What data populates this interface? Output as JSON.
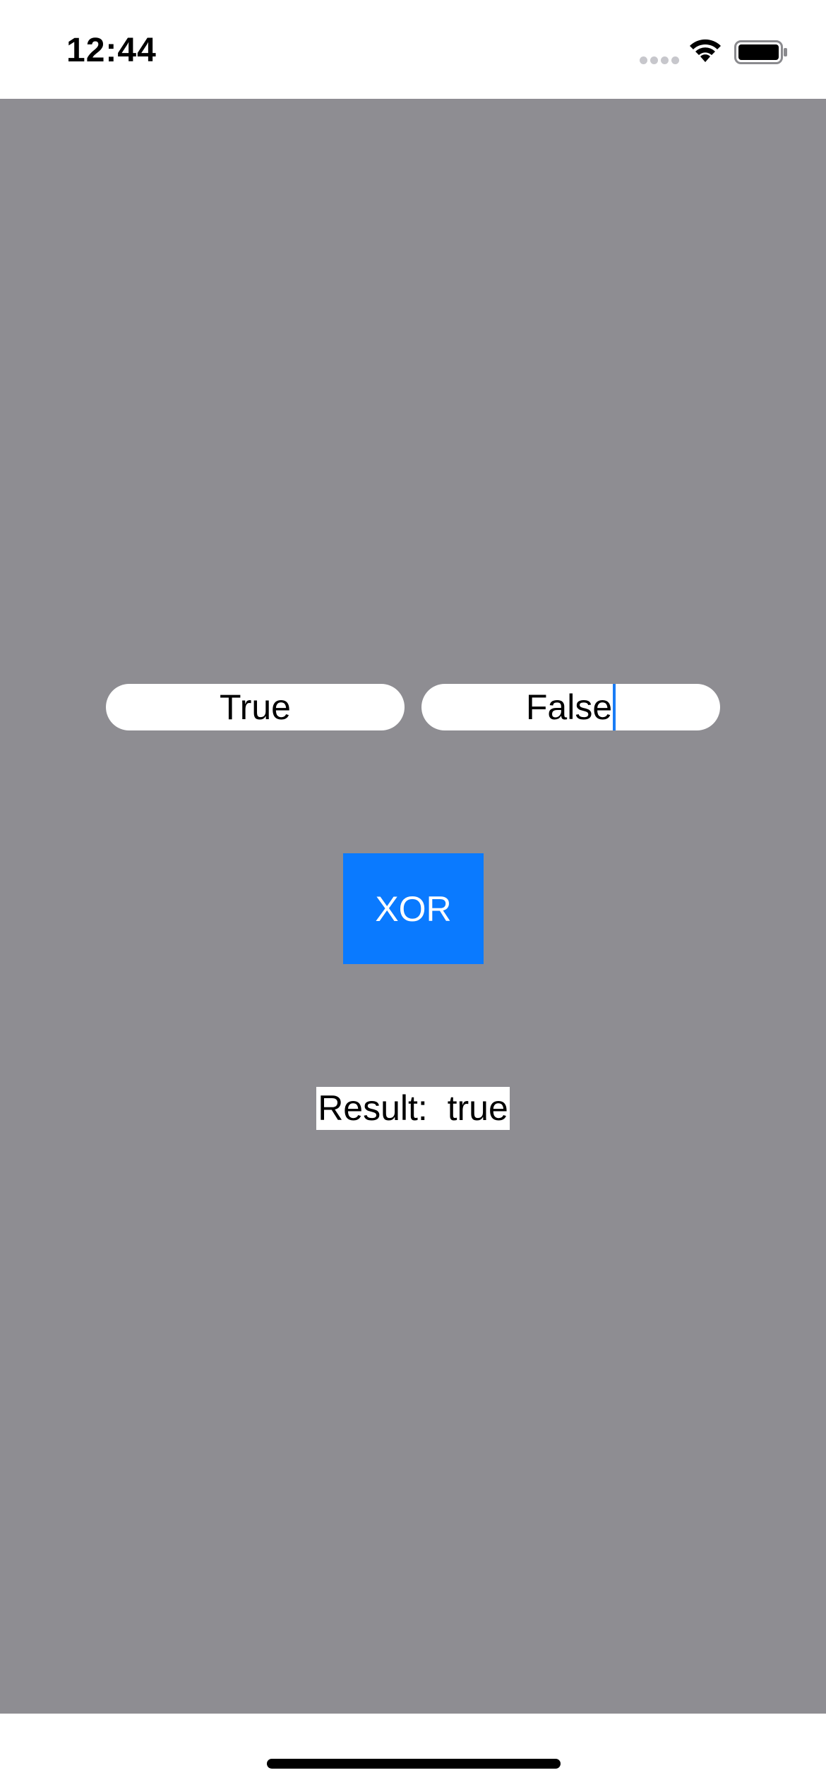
{
  "status_bar": {
    "time": "12:44",
    "icons": [
      "cellular-signal-icon",
      "wifi-icon",
      "battery-icon"
    ]
  },
  "form": {
    "input_a_value": "True",
    "input_b_value": "False",
    "button_label": "XOR",
    "result_label": "Result:",
    "result_value": "true"
  },
  "colors": {
    "background": "#8e8d92",
    "button": "#0a7aff",
    "caret": "#1a7cf5"
  }
}
